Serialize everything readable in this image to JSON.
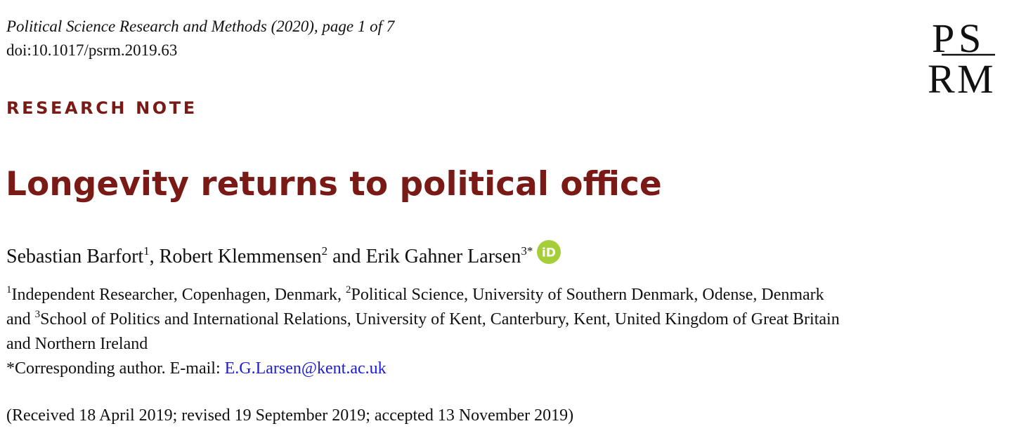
{
  "header": {
    "journal": "Political Science Research and Methods (2020), page 1 of 7",
    "doi": "doi:10.1017/psrm.2019.63",
    "logo_text": "PSRM"
  },
  "section_label": "RESEARCH NOTE",
  "title": "Longevity returns to political office",
  "authors": [
    {
      "name": "Sebastian Barfort",
      "sup": "1",
      "sep": ", "
    },
    {
      "name": "Robert Klemmensen",
      "sup": "2",
      "sep": " and "
    },
    {
      "name": "Erik Gahner Larsen",
      "sup": "3*",
      "sep": ""
    }
  ],
  "orcid_label": "iD",
  "affiliations": {
    "line1_sup1": "1",
    "line1_text1": "Independent Researcher, Copenhagen, Denmark, ",
    "line1_sup2": "2",
    "line1_text2": "Political Science, University of Southern Denmark, Odense, Denmark",
    "line2_text1": "and ",
    "line2_sup3": "3",
    "line2_text2": "School of Politics and International Relations, University of Kent, Canterbury, Kent, United Kingdom of Great Britain",
    "line3_text": "and Northern Ireland"
  },
  "corresponding": {
    "label": "*Corresponding author. E-mail: ",
    "email": "E.G.Larsen@kent.ac.uk"
  },
  "received": "(Received 18 April 2019; revised 19 September 2019; accepted 13 November 2019)",
  "colors": {
    "accent": "#7a1a16",
    "link": "#1c1cd6",
    "orcid": "#a6ce39"
  }
}
